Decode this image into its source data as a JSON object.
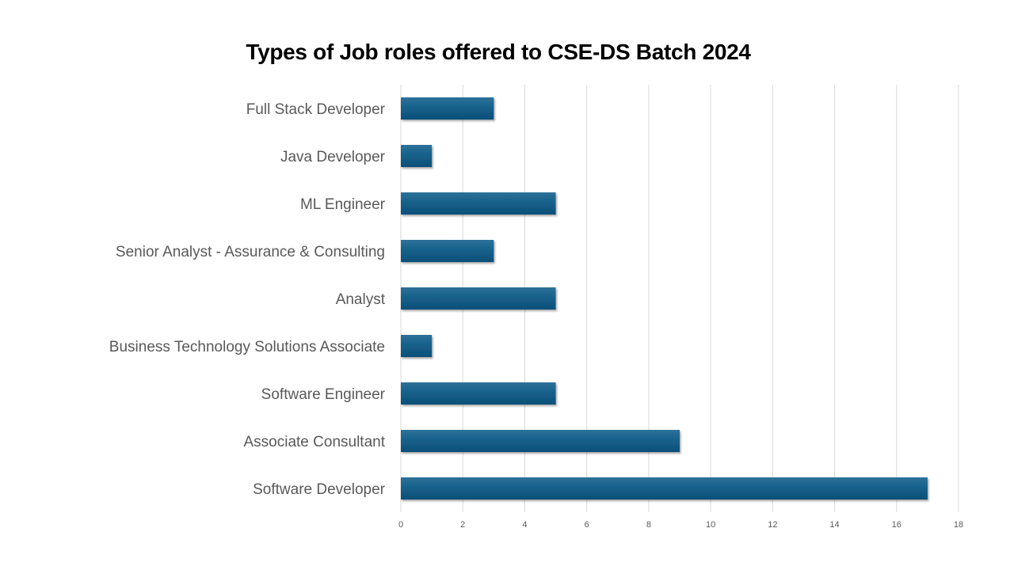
{
  "chart_data": {
    "type": "bar",
    "orientation": "horizontal",
    "title": "Types of Job roles offered to CSE-DS Batch 2024",
    "xlabel": "",
    "ylabel": "",
    "categories": [
      "Full Stack Developer",
      "Java Developer",
      "ML Engineer",
      "Senior Analyst - Assurance & Consulting",
      "Analyst ",
      "Business Technology Solutions Associate",
      "Software Engineer",
      "Associate Consultant",
      "Software Developer"
    ],
    "values": [
      3,
      1,
      5,
      3,
      5,
      1,
      5,
      9,
      17
    ],
    "xlim": [
      0,
      18
    ],
    "xticks": [
      0,
      2,
      4,
      6,
      8,
      10,
      12,
      14,
      16,
      18
    ],
    "grid": "vertical",
    "legend": "none",
    "colors": {
      "bar_top": "#2e7199",
      "bar_mid": "#17618b",
      "bar_bottom": "#0b4f78",
      "grid": "#d9d9d9",
      "label": "#595959"
    }
  }
}
